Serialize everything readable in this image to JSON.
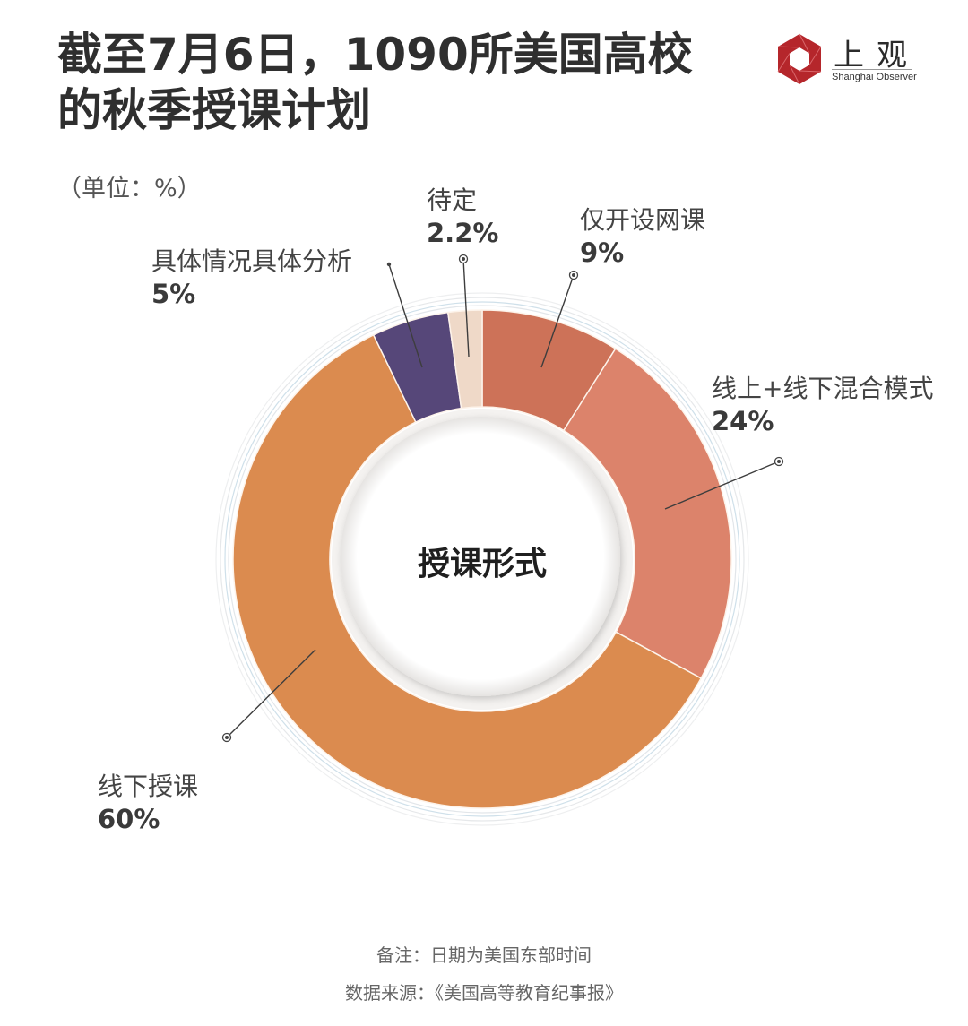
{
  "header": {
    "title_line1": "截至7月6日，1090所美国高校",
    "title_line2": "的秋季授课计划"
  },
  "logo": {
    "cn": "上观",
    "en": "Shanghai Observer",
    "icon": "red-hexagon-aperture-icon",
    "color": "#b5262b"
  },
  "unit_label": "（单位：%）",
  "center_label": "授课形式",
  "chart_data": {
    "type": "pie",
    "variant": "donut",
    "title": "截至7月6日，1090所美国高校的秋季授课计划",
    "center_text": "授课形式",
    "unit": "%",
    "start_angle": "12 o'clock, clockwise",
    "categories": [
      "仅开设网课",
      "线上+线下混合模式",
      "线下授课",
      "具体情况具体分析",
      "待定"
    ],
    "values": [
      9,
      24,
      60,
      5,
      2.2
    ],
    "labels": [
      "9%",
      "24%",
      "60%",
      "5%",
      "2.2%"
    ],
    "colors": [
      "#cd7258",
      "#dc836b",
      "#db8b4f",
      "#564779",
      "#efd9c8"
    ]
  },
  "footer": {
    "note": "备注：日期为美国东部时间",
    "source": "数据来源：《美国高等教育纪事报》"
  }
}
